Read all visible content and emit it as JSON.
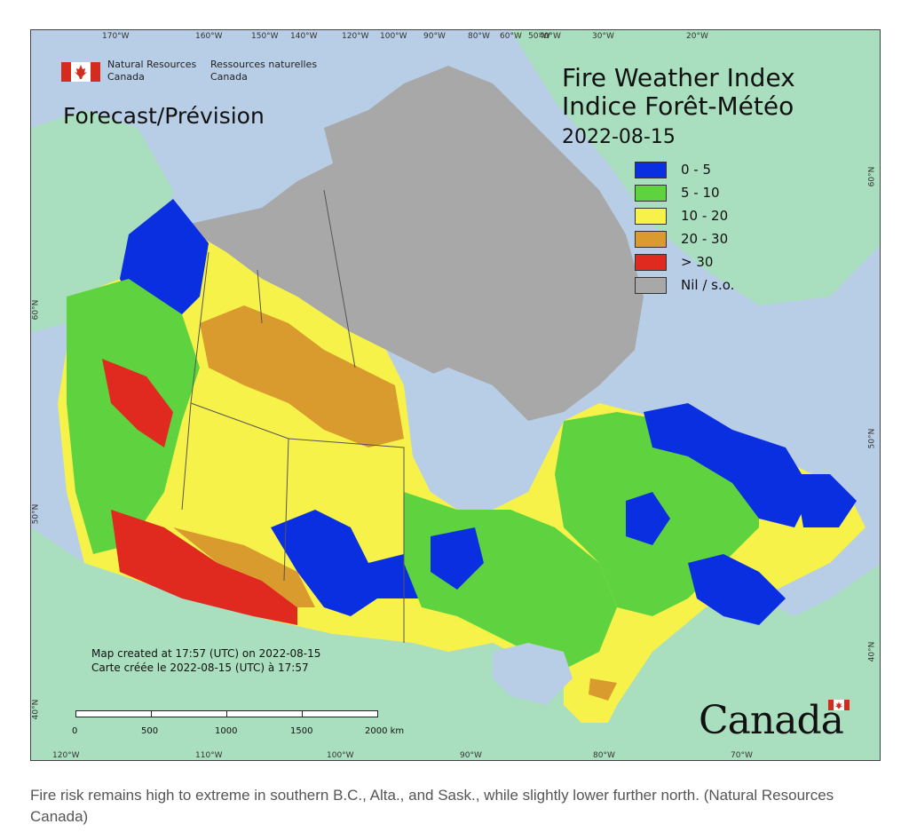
{
  "map": {
    "agency_en": "Natural Resources",
    "agency_en2": "Canada",
    "agency_fr": "Ressources naturelles",
    "agency_fr2": "Canada",
    "title_en": "Fire Weather Index",
    "title_fr": "Indice Forêt-Météo",
    "date": "2022-08-15",
    "forecast_label": "Forecast/Prévision",
    "legend": [
      {
        "label": "0 - 5",
        "color": "#0a2fe0"
      },
      {
        "label": "5 - 10",
        "color": "#5fd33f"
      },
      {
        "label": "10 - 20",
        "color": "#f6f24a"
      },
      {
        "label": "20 - 30",
        "color": "#d99a2e"
      },
      {
        "label": "> 30",
        "color": "#e02a1f"
      },
      {
        "label": "Nil / s.o.",
        "color": "#a8a8a8"
      }
    ],
    "top_ticks": [
      "170°W",
      "160°W",
      "150°W",
      "140°W",
      "120°W",
      "100°W",
      "90°W",
      "80°W",
      "60°W",
      "50°W",
      "40°W",
      "30°W",
      "20°W"
    ],
    "bottom_ticks": [
      "120°W",
      "110°W",
      "100°W",
      "90°W",
      "80°W",
      "70°W"
    ],
    "left_ticks": [
      "60°N",
      "50°N",
      "40°N"
    ],
    "right_ticks": [
      "60°N",
      "50°N",
      "40°N"
    ],
    "credit_en": "Map created at 17:57 (UTC) on 2022-08-15",
    "credit_fr": "Carte créée le 2022-08-15 (UTC) à 17:57",
    "scale_labels": [
      "0",
      "500",
      "1000",
      "1500",
      "2000 km"
    ],
    "wordmark": "Canada",
    "colors": {
      "ocean": "#b8cde6",
      "foreign_land": "#a9dfbe",
      "arctic": "#a8a8a8"
    }
  },
  "caption": "Fire risk remains high to extreme in southern B.C., Alta., and Sask., while slightly lower further north. (Natural Resources Canada)"
}
